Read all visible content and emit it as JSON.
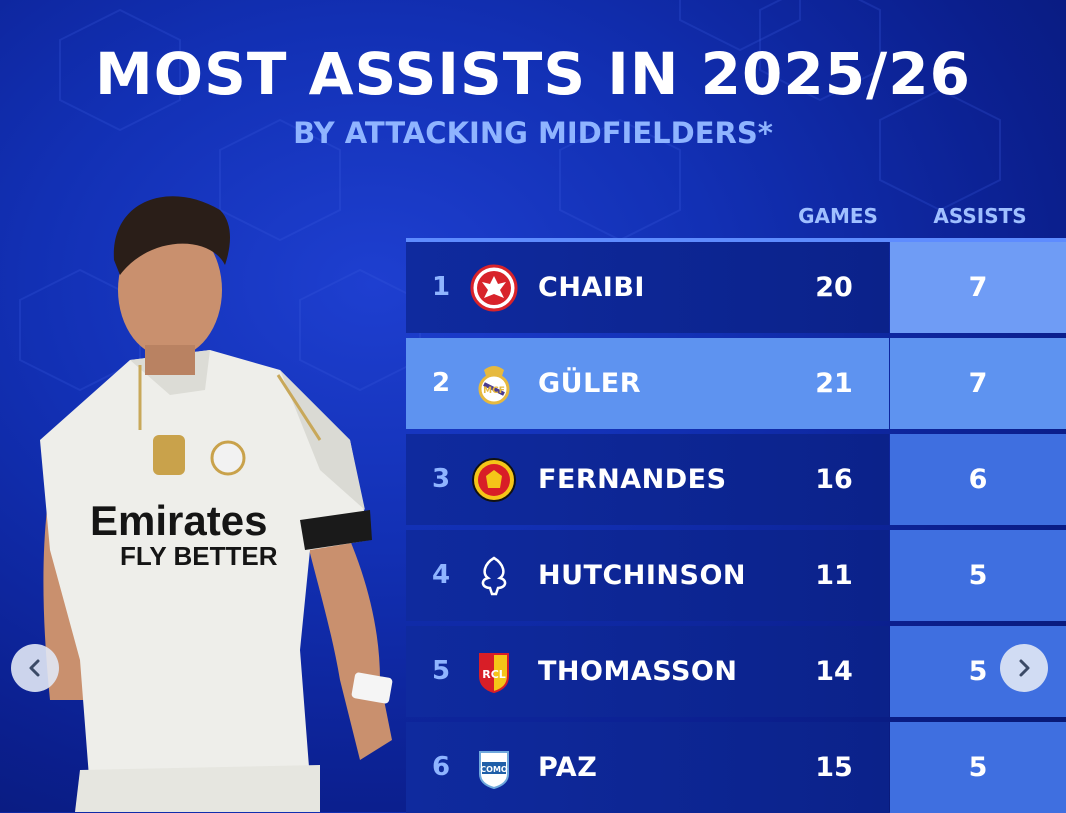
{
  "header": {
    "title": "MOST ASSISTS IN 2025/26",
    "subtitle": "BY ATTACKING MIDFIELDERS*"
  },
  "table": {
    "columns": {
      "games": "GAMES",
      "assists": "ASSISTS"
    },
    "rows": [
      {
        "rank": "1",
        "crest": "eintracht-frankfurt-eagle",
        "name": "CHAIBI",
        "games": "20",
        "assists": "7"
      },
      {
        "rank": "2",
        "crest": "real-madrid-crest",
        "name": "GÜLER",
        "games": "21",
        "assists": "7"
      },
      {
        "rank": "3",
        "crest": "manchester-united-crest",
        "name": "FERNANDES",
        "games": "16",
        "assists": "6"
      },
      {
        "rank": "4",
        "crest": "nottingham-forest-tree",
        "name": "HUTCHINSON",
        "games": "11",
        "assists": "5"
      },
      {
        "rank": "5",
        "crest": "rc-lens-crest",
        "name": "THOMASSON",
        "games": "14",
        "assists": "5"
      },
      {
        "rank": "6",
        "crest": "como-crest",
        "name": "PAZ",
        "games": "15",
        "assists": "5"
      }
    ]
  },
  "player_image": {
    "sponsor_line1": "Emirates",
    "sponsor_line2": "FLY BETTER"
  },
  "carousel": {
    "prev_icon": "chevron-left-icon",
    "next_icon": "chevron-right-icon"
  },
  "colors": {
    "background": "#1230b4",
    "row": "#0f2a9e",
    "highlight_row": "#5e93f0",
    "accent": "#8fb4ff"
  }
}
